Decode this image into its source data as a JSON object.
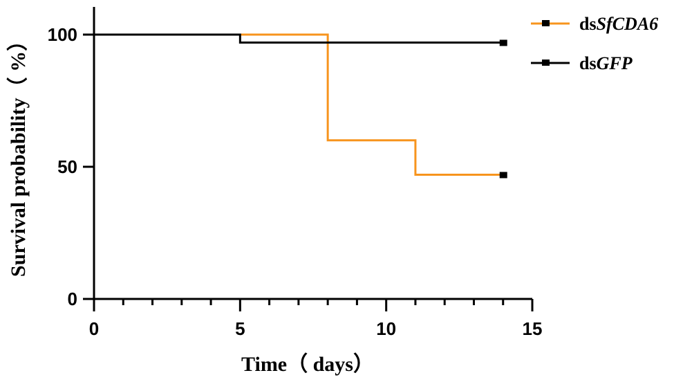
{
  "chart_data": {
    "type": "line",
    "step": true,
    "xlabel": "Time（ days）",
    "ylabel": "Survival probability（ %）",
    "xlim": [
      0,
      15
    ],
    "ylim": [
      0,
      110
    ],
    "x_ticks": [
      0,
      5,
      10,
      15
    ],
    "x_tick_labels": [
      "0",
      "5",
      "10",
      "15"
    ],
    "x_minor_ticks": [
      1,
      2,
      3,
      4,
      6,
      7,
      8,
      9,
      11,
      12,
      13,
      14
    ],
    "y_ticks": [
      0,
      50,
      100
    ],
    "y_tick_labels": [
      "0",
      "50",
      "100"
    ],
    "grid": false,
    "legend_position": "top-right",
    "series": [
      {
        "name": "dsSfCDA6",
        "name_parts": [
          "ds",
          "SfCDA6"
        ],
        "color": "#f7941d",
        "x": [
          0,
          8,
          11,
          14
        ],
        "y": [
          100,
          60,
          47,
          47
        ]
      },
      {
        "name": "dsGFP",
        "name_parts": [
          "ds",
          "GFP"
        ],
        "color": "#000000",
        "x": [
          0,
          5,
          14
        ],
        "y": [
          100,
          97,
          97
        ]
      }
    ]
  }
}
